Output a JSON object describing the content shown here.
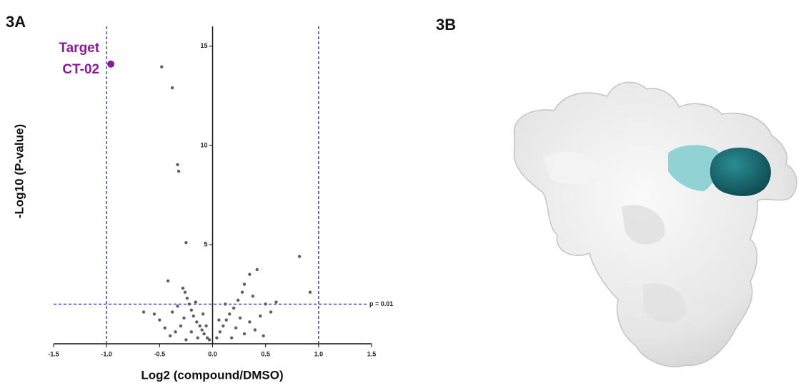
{
  "panel_labels": [
    "3A",
    "3B"
  ],
  "chart_data": {
    "type": "scatter",
    "x_label": "Log2 (compound/DMSO)",
    "y_label": "-Log10 (P-value)",
    "xlim": [
      -1.5,
      1.5
    ],
    "ylim": [
      0,
      16
    ],
    "xticks": [
      -1.5,
      {
        "value": -1,
        "label": "-1.0"
      },
      -0.5,
      {
        "value": 0,
        "label": "0.0"
      },
      0.5,
      {
        "value": 1,
        "label": "1.0"
      },
      1.5
    ],
    "yticks": [
      5,
      10,
      15
    ],
    "threshold_x": [
      -1,
      1
    ],
    "threshold_y": 2,
    "threshold_y_label": "p = 0.01",
    "threshold_color": "#1f2fbf",
    "series": [
      {
        "color": "#606060",
        "x": [
          -0.48,
          -0.38,
          -0.33,
          -0.32,
          -0.25,
          0.82,
          0.92,
          0.42,
          0.35,
          -0.42,
          -0.65,
          -0.55,
          0.6,
          -0.05,
          -0.08,
          -0.1,
          -0.12,
          -0.15,
          -0.18,
          -0.2,
          -0.22,
          -0.24,
          -0.26,
          -0.28,
          -0.27,
          -0.3,
          -0.35,
          -0.4,
          -0.45,
          -0.5,
          -0.33,
          -0.2,
          -0.14,
          -0.06,
          -0.03,
          -0.09,
          -0.16,
          -0.38,
          -0.25,
          0.04,
          0.07,
          0.1,
          0.13,
          0.16,
          0.2,
          0.24,
          0.28,
          0.3,
          0.22,
          0.3,
          0.35,
          0.4,
          0.45,
          0.5,
          0.55,
          0.18,
          0.12,
          0.38,
          0.06,
          0.26,
          0.48
        ],
        "y": [
          13.96,
          12.9,
          9.03,
          8.7,
          5.1,
          4.4,
          2.6,
          3.74,
          3.5,
          3.17,
          1.6,
          1.5,
          2.1,
          0.3,
          0.5,
          0.7,
          0.9,
          1.1,
          1.4,
          1.7,
          2.0,
          2.3,
          2.6,
          2.8,
          1.3,
          0.9,
          0.6,
          0.4,
          0.8,
          1.2,
          1.9,
          0.6,
          0.3,
          0.9,
          0.2,
          1.5,
          2.1,
          1.6,
          0.2,
          0.3,
          0.6,
          0.9,
          1.2,
          1.5,
          1.8,
          2.2,
          2.6,
          3.0,
          0.8,
          0.5,
          1.1,
          0.7,
          1.4,
          2.0,
          1.6,
          0.3,
          2.0,
          2.4,
          1.2,
          1.3,
          0.4
        ]
      },
      {
        "color": "#8b1a9b",
        "x": [
          -0.96
        ],
        "y": [
          14.1
        ],
        "label": [
          "Target",
          "CT-02"
        ]
      }
    ]
  }
}
